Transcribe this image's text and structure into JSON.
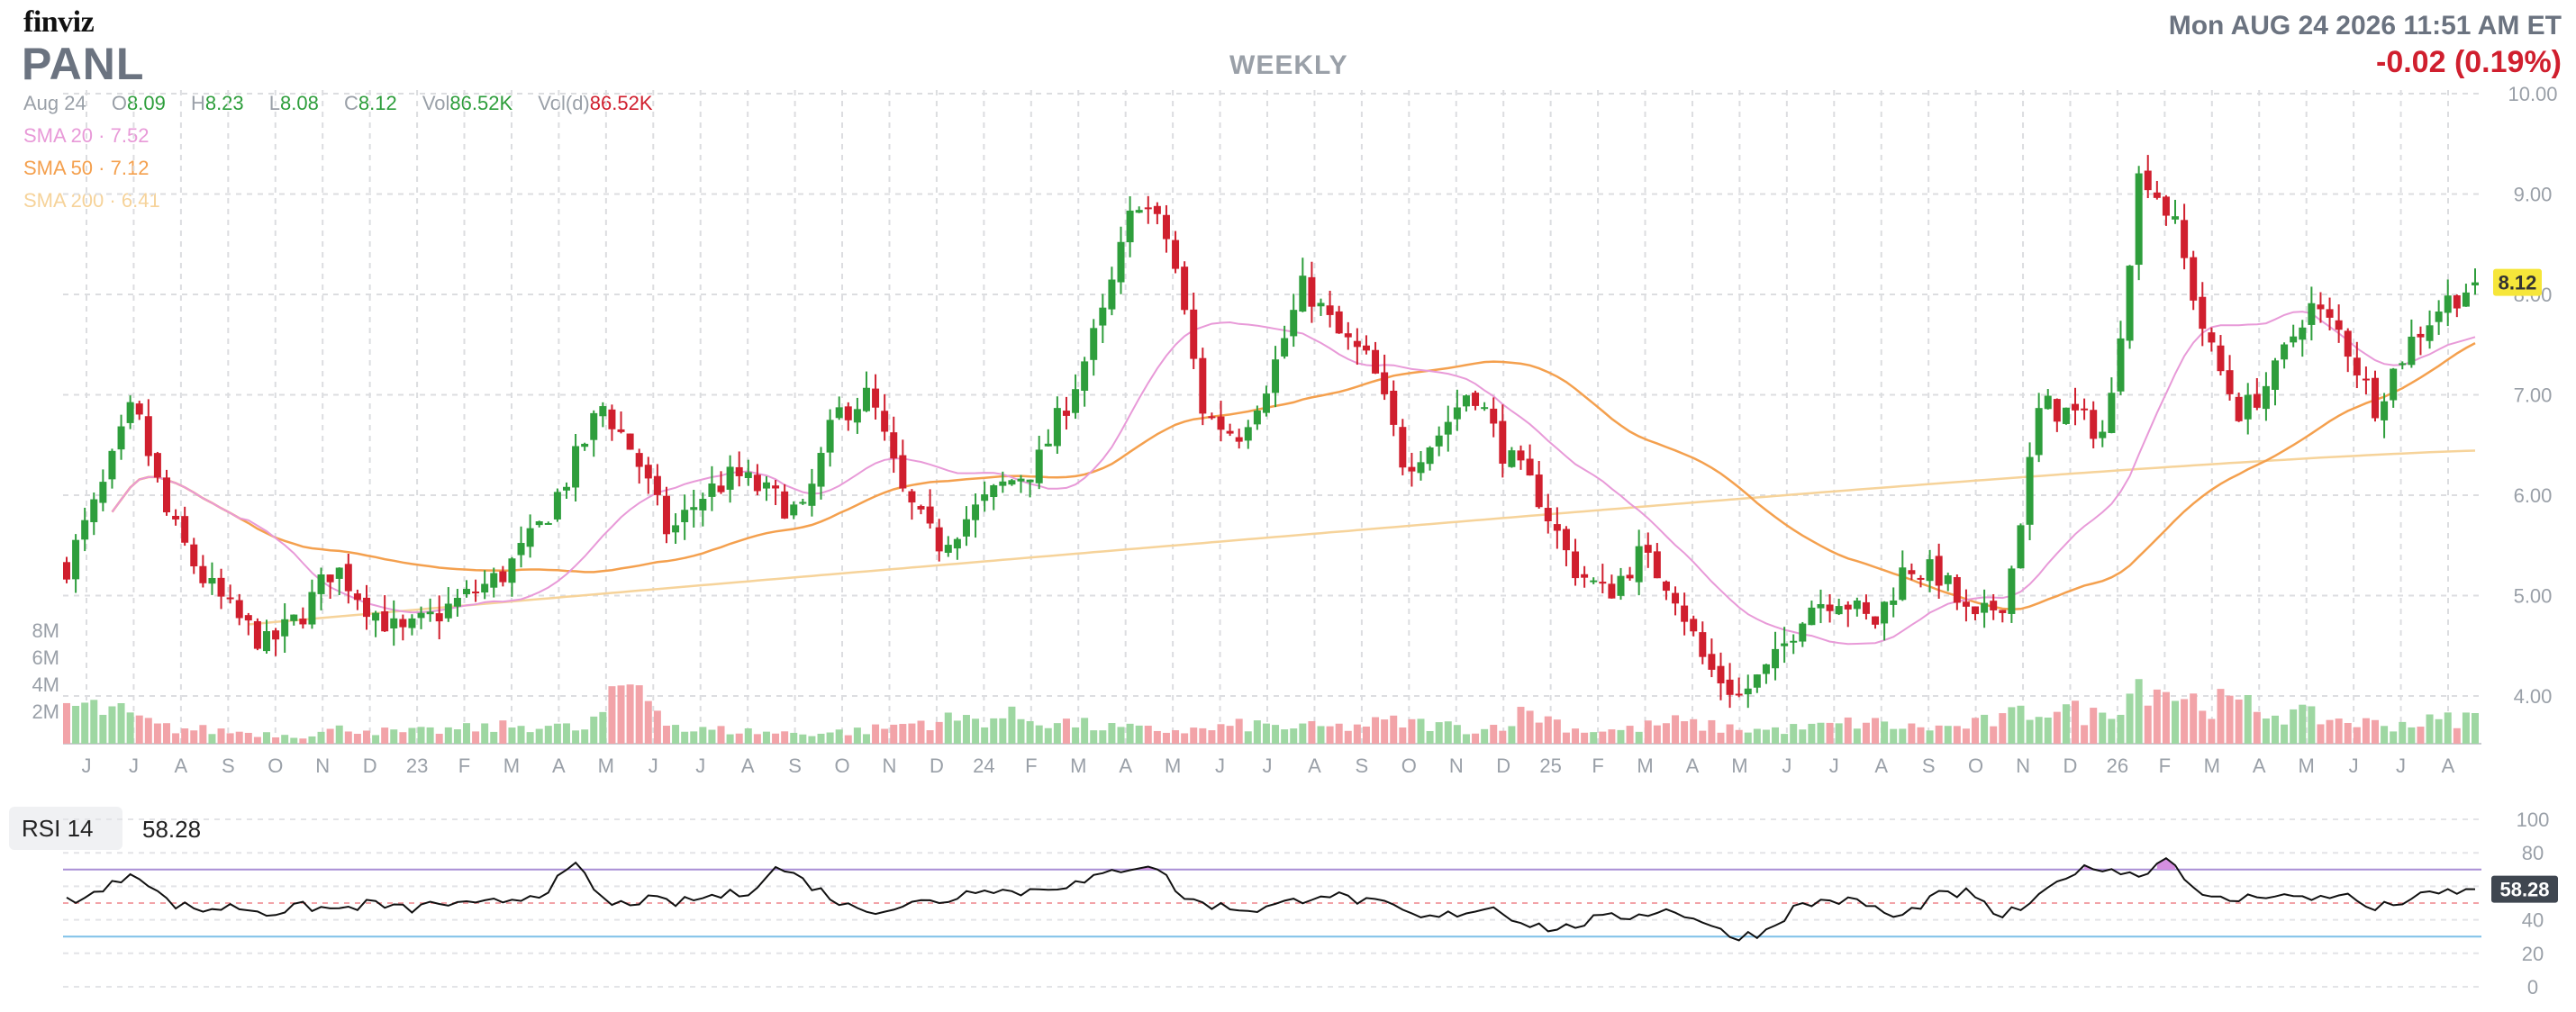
{
  "header": {
    "logo": "finviz",
    "ticker": "PANL",
    "period": "WEEKLY",
    "datetime": "Mon AUG 24 2026 11:51 AM ET",
    "change": "-0.02 (0.19%)"
  },
  "ohlc": {
    "date": "Aug 24",
    "open_label": "O",
    "open": "8.09",
    "high_label": "H",
    "high": "8.23",
    "low_label": "L",
    "low": "8.08",
    "close_label": "C",
    "close": "8.12",
    "vol_label": "Vol",
    "vol": "86.52K",
    "vold_label": "Vol(d)",
    "vold": "86.52K"
  },
  "sma_legend": [
    {
      "label": "SMA 20",
      "value": "7.52",
      "color": "#e89ad8"
    },
    {
      "label": "SMA 50",
      "value": "7.12",
      "color": "#f4a04e"
    },
    {
      "label": "SMA 200",
      "value": "6.41",
      "color": "#f6d39a"
    }
  ],
  "colors": {
    "up": "#2e9e3c",
    "down": "#d01f2e",
    "vol_up": "#9ed7a2",
    "vol_down": "#f2a3a8",
    "last_price_bg": "#f6e63a"
  },
  "chart_data": [
    {
      "type": "candlestick",
      "title": "PANL",
      "ylim": [
        3.5,
        10.0
      ],
      "y_ticks": [
        "10.00",
        "9.00",
        "8.00",
        "7.00",
        "6.00",
        "5.00",
        "4.00"
      ],
      "last_price": "8.12",
      "volume_ticks": [
        "8M",
        "6M",
        "4M",
        "2M"
      ],
      "x_labels": [
        "J",
        "J",
        "A",
        "S",
        "O",
        "N",
        "D",
        "23",
        "F",
        "M",
        "A",
        "M",
        "J",
        "J",
        "A",
        "S",
        "O",
        "N",
        "D",
        "24",
        "F",
        "M",
        "A",
        "M",
        "J",
        "J",
        "A",
        "S",
        "O",
        "N",
        "D",
        "25",
        "F",
        "M",
        "A",
        "M",
        "J",
        "J",
        "A",
        "S",
        "O",
        "N",
        "D",
        "26",
        "F",
        "M",
        "A",
        "M",
        "J",
        "J",
        "A"
      ],
      "close_path": [
        5.3,
        6.0,
        6.9,
        5.8,
        5.2,
        4.8,
        4.5,
        4.8,
        5.3,
        4.9,
        4.6,
        4.8,
        5.0,
        5.2,
        5.6,
        6.2,
        6.9,
        6.4,
        5.6,
        6.0,
        6.2,
        6.0,
        5.8,
        6.8,
        7.0,
        6.0,
        5.5,
        5.8,
        6.1,
        6.3,
        7.0,
        7.8,
        9.0,
        8.5,
        6.8,
        6.6,
        7.2,
        8.1,
        7.6,
        7.3,
        6.3,
        6.6,
        7.1,
        6.4,
        6.0,
        5.3,
        5.0,
        5.4,
        5.1,
        4.3,
        4.0,
        4.3,
        4.9,
        5.0,
        4.7,
        5.3,
        5.2,
        4.7,
        5.0,
        6.9,
        6.8,
        6.6,
        9.3,
        8.7,
        7.5,
        6.8,
        7.2,
        7.9,
        7.6,
        6.9,
        7.5,
        7.9,
        8.12
      ],
      "volume_path": [
        1.4,
        1.2,
        0.6,
        0.5,
        0.4,
        0.3,
        0.6,
        0.4,
        0.5,
        0.6,
        0.7,
        0.5,
        2.4,
        0.5,
        0.5,
        0.4,
        0.4,
        0.5,
        0.8,
        0.9,
        1.0,
        0.8,
        0.6,
        0.5,
        0.5,
        0.7,
        0.6,
        0.6,
        0.8,
        0.7,
        0.5,
        1.2,
        0.5,
        0.5,
        0.8,
        0.6,
        0.5,
        0.6,
        0.8,
        0.6,
        0.6,
        0.9,
        1.4,
        1.0,
        2.4,
        1.6,
        1.4,
        1.1,
        0.9,
        0.7,
        0.8,
        1.0
      ]
    },
    {
      "type": "line",
      "title": "RSI 14",
      "value": "58.28",
      "ylim": [
        0,
        100
      ],
      "y_ticks": [
        "100",
        "80",
        "60",
        "40",
        "20",
        "0"
      ],
      "levels": [
        70,
        30
      ],
      "path": [
        52,
        56,
        70,
        50,
        46,
        48,
        44,
        48,
        46,
        50,
        46,
        50,
        48,
        52,
        56,
        72,
        48,
        52,
        50,
        54,
        56,
        72,
        60,
        48,
        46,
        50,
        52,
        60,
        56,
        60,
        62,
        70,
        74,
        52,
        48,
        46,
        50,
        56,
        52,
        48,
        40,
        44,
        48,
        38,
        34,
        40,
        42,
        46,
        42,
        30,
        32,
        48,
        52,
        50,
        40,
        54,
        56,
        42,
        50,
        68,
        72,
        66,
        78,
        52,
        52,
        56,
        52,
        56,
        46,
        52,
        56,
        58.28
      ]
    }
  ]
}
